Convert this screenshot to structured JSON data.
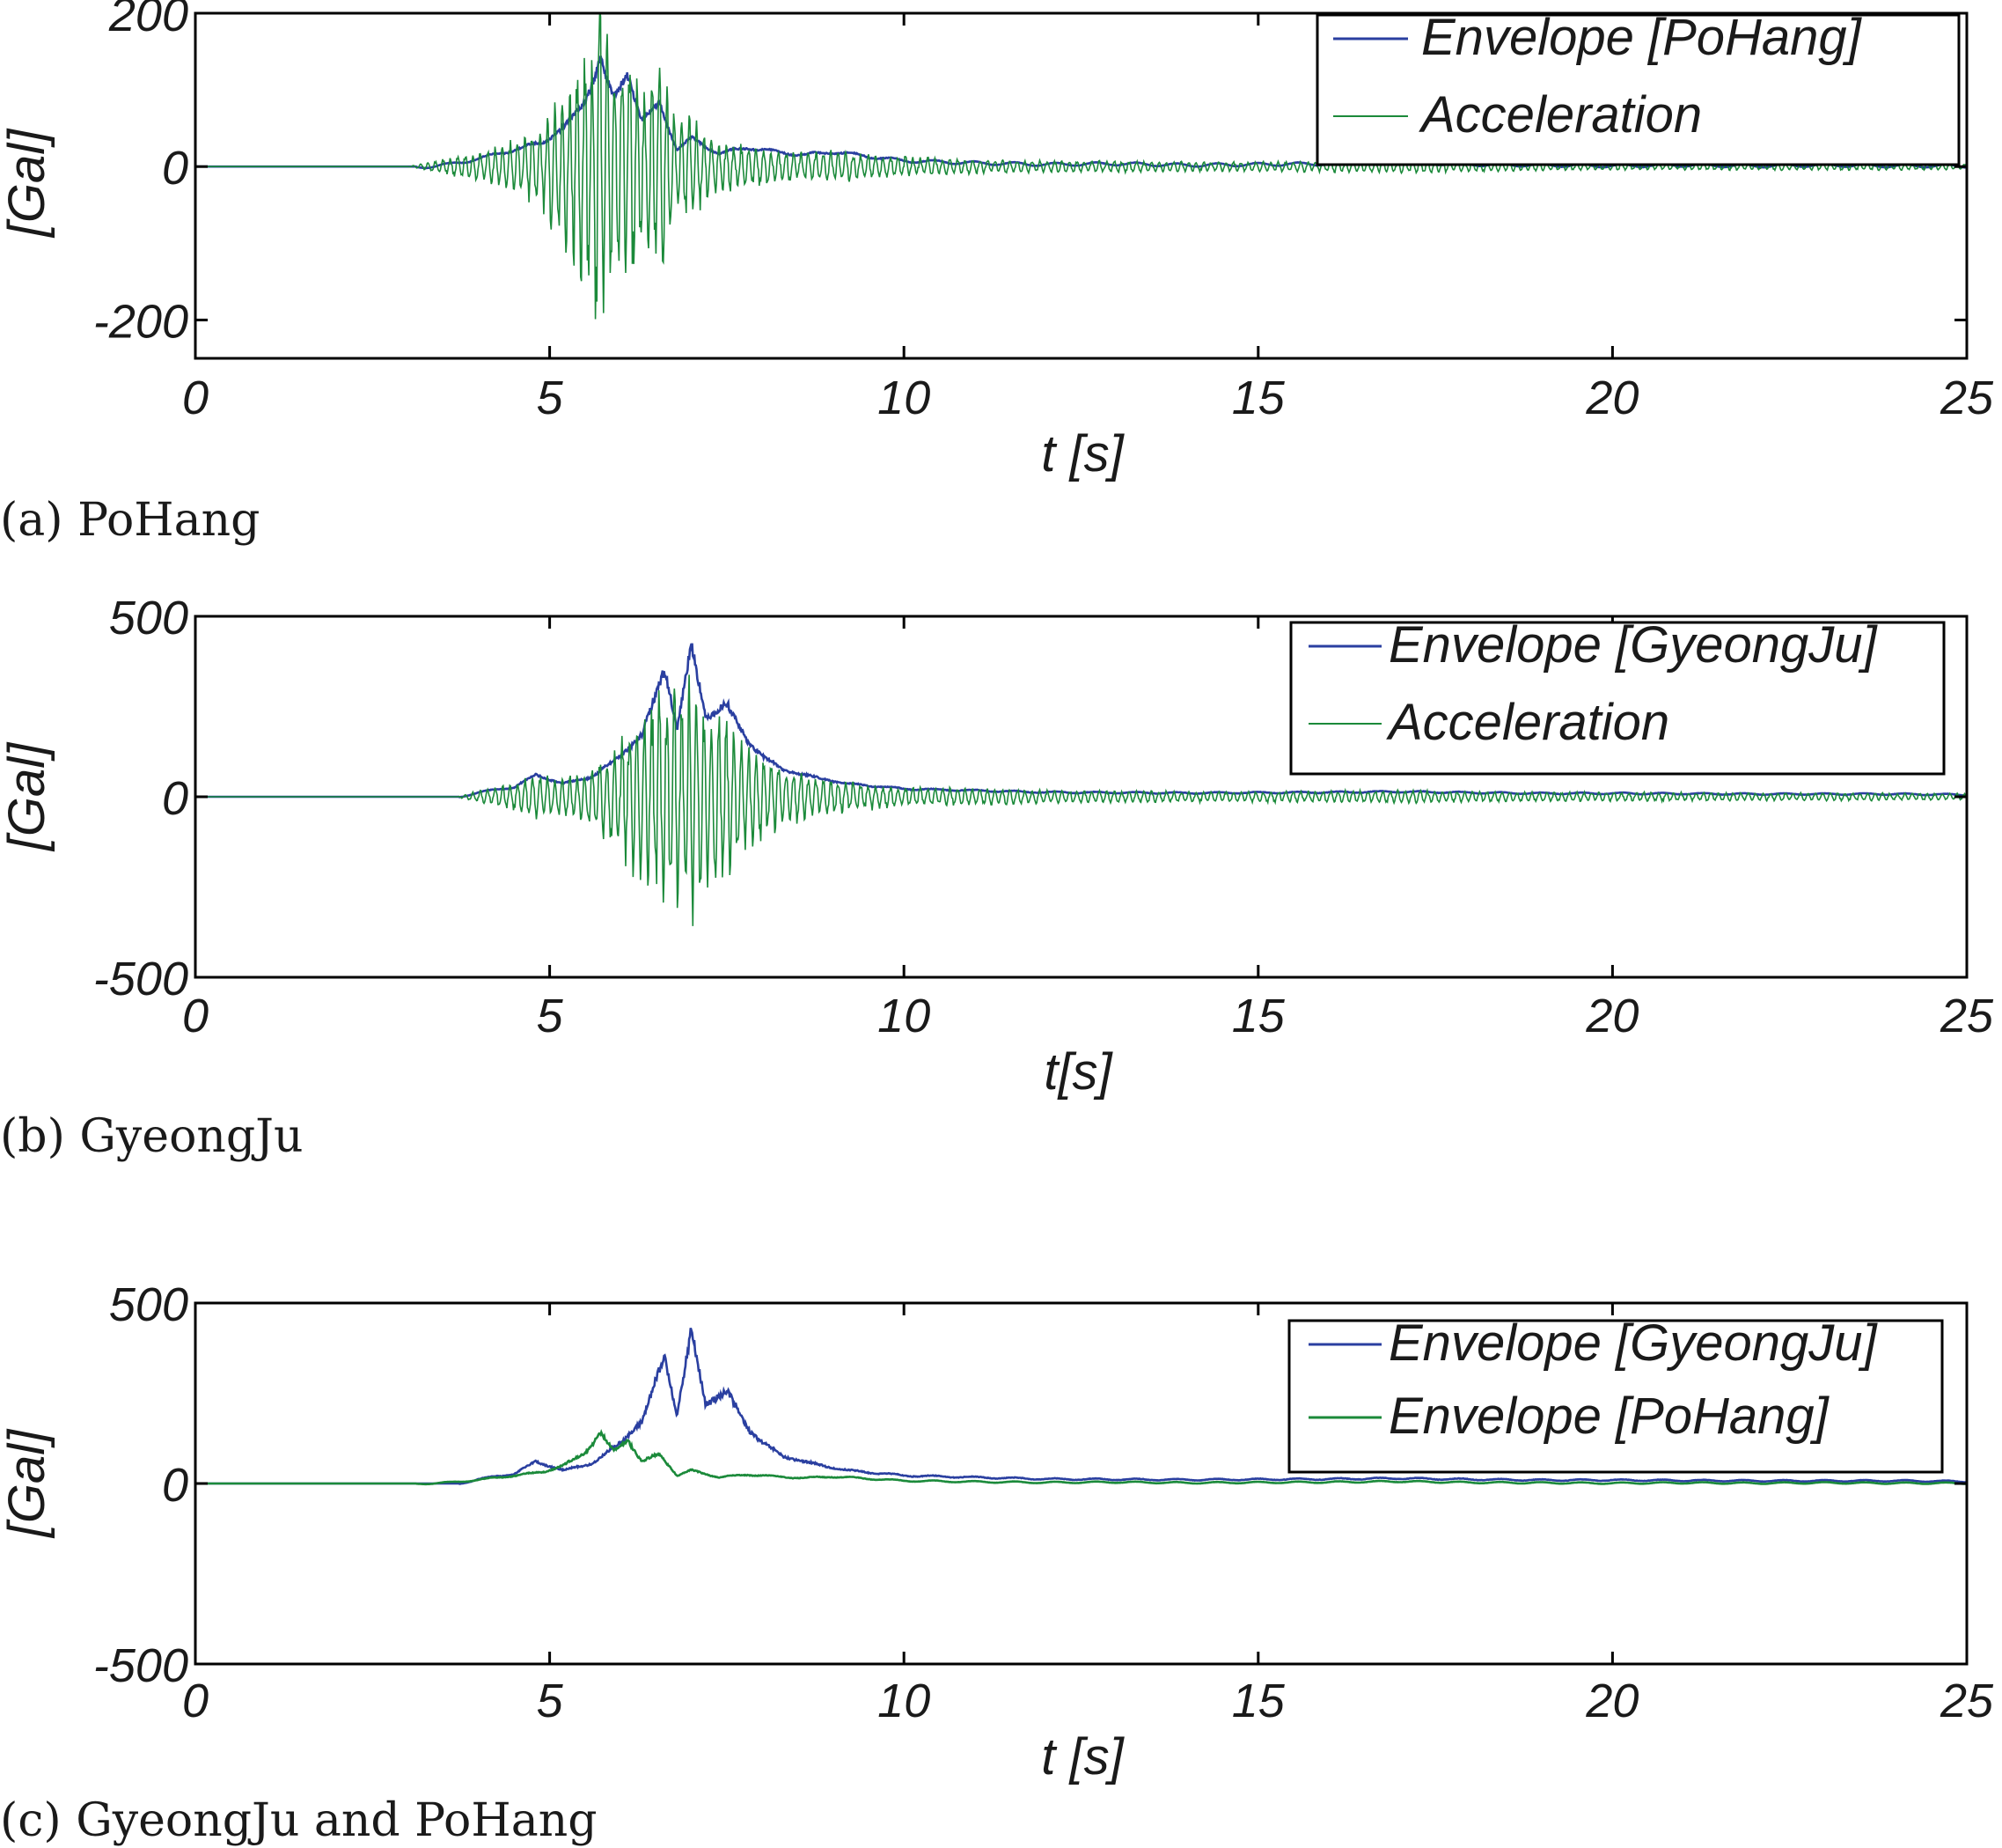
{
  "colors": {
    "envelope_blue": "#2a3fa0",
    "acceleration_green": "#1b8a3a",
    "axis": "#000000"
  },
  "chart_data": [
    {
      "type": "line",
      "caption": "(a) PoHang",
      "xlabel": "t [s]",
      "ylabel": "[Gal]",
      "xlim": [
        0,
        25
      ],
      "ylim": [
        -250,
        200
      ],
      "x_ticks": [
        "0",
        "5",
        "10",
        "15",
        "20",
        "25"
      ],
      "y_ticks": [
        "200",
        "0",
        "-200"
      ],
      "y_tick_values": [
        200,
        0,
        -200
      ],
      "legend_position": "top-right",
      "series": [
        {
          "name": "Envelope [PoHang]",
          "color": "#2a3fa0",
          "role": "envelope",
          "envelope": [
            [
              0,
              0
            ],
            [
              3,
              0
            ],
            [
              3.6,
              5
            ],
            [
              4.1,
              15
            ],
            [
              4.5,
              25
            ],
            [
              4.9,
              35
            ],
            [
              5.2,
              55
            ],
            [
              5.5,
              90
            ],
            [
              5.72,
              148
            ],
            [
              5.9,
              95
            ],
            [
              6.1,
              128
            ],
            [
              6.3,
              65
            ],
            [
              6.55,
              88
            ],
            [
              6.8,
              25
            ],
            [
              7.0,
              40
            ],
            [
              7.4,
              20
            ],
            [
              7.8,
              28
            ],
            [
              8.2,
              22
            ],
            [
              8.6,
              18
            ],
            [
              9.0,
              22
            ],
            [
              10,
              10
            ],
            [
              11,
              7
            ],
            [
              12,
              5
            ],
            [
              13,
              6
            ],
            [
              14,
              4
            ],
            [
              15,
              5
            ],
            [
              16,
              6
            ],
            [
              17,
              8
            ],
            [
              18,
              5
            ],
            [
              19,
              4
            ],
            [
              20,
              3
            ],
            [
              21,
              4
            ],
            [
              22,
              3
            ],
            [
              23,
              4
            ],
            [
              24,
              3
            ],
            [
              25,
              3
            ]
          ]
        },
        {
          "name": "Acceleration",
          "color": "#1b8a3a",
          "role": "acceleration",
          "envelope": [
            [
              0,
              0
            ],
            [
              3,
              0
            ],
            [
              3.6,
              12
            ],
            [
              4.1,
              25
            ],
            [
              4.5,
              40
            ],
            [
              4.9,
              60
            ],
            [
              5.2,
              120
            ],
            [
              5.5,
              170
            ],
            [
              5.72,
              240
            ],
            [
              5.9,
              140
            ],
            [
              6.1,
              170
            ],
            [
              6.3,
              110
            ],
            [
              6.55,
              150
            ],
            [
              6.8,
              60
            ],
            [
              7.0,
              70
            ],
            [
              7.4,
              35
            ],
            [
              7.8,
              30
            ],
            [
              8.2,
              25
            ],
            [
              8.6,
              20
            ],
            [
              9.0,
              22
            ],
            [
              10,
              14
            ],
            [
              11,
              10
            ],
            [
              12,
              8
            ],
            [
              13,
              8
            ],
            [
              14,
              7
            ],
            [
              15,
              7
            ],
            [
              16,
              8
            ],
            [
              17,
              9
            ],
            [
              18,
              7
            ],
            [
              19,
              6
            ],
            [
              20,
              5
            ],
            [
              21,
              5
            ],
            [
              22,
              5
            ],
            [
              23,
              5
            ],
            [
              24,
              5
            ],
            [
              25,
              4
            ]
          ]
        }
      ]
    },
    {
      "type": "line",
      "caption": "(b) GyeongJu",
      "xlabel": "t[s]",
      "ylabel": "[Gal]",
      "xlim": [
        0,
        25
      ],
      "ylim": [
        -500,
        500
      ],
      "x_ticks": [
        "0",
        "5",
        "10",
        "15",
        "20",
        "25"
      ],
      "y_ticks": [
        "500",
        "0",
        "-500"
      ],
      "y_tick_values": [
        500,
        0,
        -500
      ],
      "legend_position": "top-right",
      "series": [
        {
          "name": "Envelope [GyeongJu]",
          "color": "#2a3fa0",
          "role": "envelope",
          "envelope": [
            [
              0,
              0
            ],
            [
              3.7,
              0
            ],
            [
              4.0,
              15
            ],
            [
              4.5,
              30
            ],
            [
              4.8,
              65
            ],
            [
              5.2,
              40
            ],
            [
              5.6,
              60
            ],
            [
              6.0,
              120
            ],
            [
              6.3,
              180
            ],
            [
              6.62,
              370
            ],
            [
              6.8,
              200
            ],
            [
              7.0,
              445
            ],
            [
              7.2,
              230
            ],
            [
              7.5,
              270
            ],
            [
              7.8,
              160
            ],
            [
              8.0,
              120
            ],
            [
              8.3,
              80
            ],
            [
              8.7,
              60
            ],
            [
              9.2,
              40
            ],
            [
              10,
              25
            ],
            [
              11,
              20
            ],
            [
              12,
              15
            ],
            [
              13,
              14
            ],
            [
              14,
              13
            ],
            [
              15,
              14
            ],
            [
              16,
              15
            ],
            [
              17,
              17
            ],
            [
              18,
              14
            ],
            [
              19,
              12
            ],
            [
              20,
              12
            ],
            [
              21,
              11
            ],
            [
              22,
              10
            ],
            [
              23,
              10
            ],
            [
              24,
              10
            ],
            [
              25,
              8
            ]
          ]
        },
        {
          "name": "Acceleration",
          "color": "#1b8a3a",
          "role": "acceleration",
          "envelope": [
            [
              0,
              0
            ],
            [
              3.7,
              0
            ],
            [
              4.0,
              20
            ],
            [
              4.5,
              40
            ],
            [
              4.8,
              70
            ],
            [
              5.2,
              60
            ],
            [
              5.6,
              90
            ],
            [
              6.0,
              180
            ],
            [
              6.3,
              260
            ],
            [
              6.62,
              330
            ],
            [
              6.8,
              340
            ],
            [
              7.0,
              390
            ],
            [
              7.2,
              260
            ],
            [
              7.5,
              280
            ],
            [
              7.8,
              160
            ],
            [
              8.0,
              130
            ],
            [
              8.3,
              90
            ],
            [
              8.7,
              60
            ],
            [
              9.2,
              45
            ],
            [
              10,
              30
            ],
            [
              11,
              25
            ],
            [
              12,
              20
            ],
            [
              13,
              18
            ],
            [
              14,
              16
            ],
            [
              15,
              16
            ],
            [
              16,
              18
            ],
            [
              17,
              20
            ],
            [
              18,
              16
            ],
            [
              19,
              15
            ],
            [
              20,
              14
            ],
            [
              21,
              13
            ],
            [
              22,
              12
            ],
            [
              23,
              12
            ],
            [
              24,
              11
            ],
            [
              25,
              10
            ]
          ]
        }
      ]
    },
    {
      "type": "line",
      "caption": "(c) GyeongJu and PoHang",
      "xlabel": "t [s]",
      "ylabel": "[Gal]",
      "xlim": [
        0,
        25
      ],
      "ylim": [
        -500,
        500
      ],
      "x_ticks": [
        "0",
        "5",
        "10",
        "15",
        "20",
        "25"
      ],
      "y_ticks": [
        "500",
        "0",
        "-500"
      ],
      "y_tick_values": [
        500,
        0,
        -500
      ],
      "legend_position": "top-right",
      "series": [
        {
          "name": "Envelope [GyeongJu]",
          "color": "#2a3fa0",
          "role": "envelope",
          "envelope": [
            [
              0,
              0
            ],
            [
              3.7,
              0
            ],
            [
              4.0,
              15
            ],
            [
              4.5,
              30
            ],
            [
              4.8,
              65
            ],
            [
              5.2,
              40
            ],
            [
              5.6,
              60
            ],
            [
              6.0,
              120
            ],
            [
              6.3,
              180
            ],
            [
              6.62,
              370
            ],
            [
              6.8,
              200
            ],
            [
              7.0,
              445
            ],
            [
              7.2,
              230
            ],
            [
              7.5,
              270
            ],
            [
              7.8,
              160
            ],
            [
              8.0,
              120
            ],
            [
              8.3,
              80
            ],
            [
              8.7,
              60
            ],
            [
              9.2,
              40
            ],
            [
              10,
              25
            ],
            [
              11,
              20
            ],
            [
              12,
              15
            ],
            [
              13,
              14
            ],
            [
              14,
              13
            ],
            [
              15,
              14
            ],
            [
              16,
              15
            ],
            [
              17,
              17
            ],
            [
              18,
              14
            ],
            [
              19,
              12
            ],
            [
              20,
              12
            ],
            [
              21,
              11
            ],
            [
              22,
              10
            ],
            [
              23,
              10
            ],
            [
              24,
              10
            ],
            [
              25,
              8
            ]
          ]
        },
        {
          "name": "Envelope [PoHang]",
          "color": "#1b8a3a",
          "role": "envelope",
          "envelope": [
            [
              0,
              0
            ],
            [
              3,
              0
            ],
            [
              3.6,
              5
            ],
            [
              4.1,
              15
            ],
            [
              4.5,
              25
            ],
            [
              4.9,
              35
            ],
            [
              5.2,
              55
            ],
            [
              5.5,
              90
            ],
            [
              5.72,
              148
            ],
            [
              5.9,
              95
            ],
            [
              6.1,
              128
            ],
            [
              6.3,
              65
            ],
            [
              6.55,
              88
            ],
            [
              6.8,
              25
            ],
            [
              7.0,
              40
            ],
            [
              7.4,
              20
            ],
            [
              7.8,
              28
            ],
            [
              8.2,
              22
            ],
            [
              8.6,
              18
            ],
            [
              9.0,
              22
            ],
            [
              10,
              10
            ],
            [
              11,
              7
            ],
            [
              12,
              5
            ],
            [
              13,
              6
            ],
            [
              14,
              4
            ],
            [
              15,
              5
            ],
            [
              16,
              6
            ],
            [
              17,
              8
            ],
            [
              18,
              5
            ],
            [
              19,
              4
            ],
            [
              20,
              3
            ],
            [
              21,
              4
            ],
            [
              22,
              3
            ],
            [
              23,
              4
            ],
            [
              24,
              3
            ],
            [
              25,
              3
            ]
          ]
        }
      ]
    }
  ]
}
